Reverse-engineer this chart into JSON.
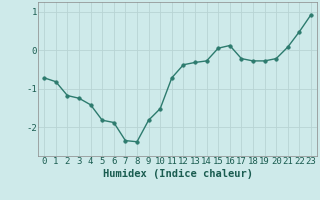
{
  "x": [
    0,
    1,
    2,
    3,
    4,
    5,
    6,
    7,
    8,
    9,
    10,
    11,
    12,
    13,
    14,
    15,
    16,
    17,
    18,
    19,
    20,
    21,
    22,
    23
  ],
  "y": [
    -0.72,
    -0.82,
    -1.18,
    -1.25,
    -1.42,
    -1.82,
    -1.88,
    -2.35,
    -2.38,
    -1.82,
    -1.52,
    -0.72,
    -0.38,
    -0.32,
    -0.28,
    0.05,
    0.12,
    -0.22,
    -0.28,
    -0.28,
    -0.22,
    0.08,
    0.48,
    0.92
  ],
  "line_color": "#2d7b6e",
  "marker_color": "#2d7b6e",
  "bg_color": "#ceeaea",
  "grid_color": "#b8d4d4",
  "xlabel": "Humidex (Indice chaleur)",
  "xlim": [
    -0.5,
    23.5
  ],
  "ylim": [
    -2.75,
    1.25
  ],
  "yticks": [
    -2,
    -1,
    0,
    1
  ],
  "xtick_labels": [
    "0",
    "1",
    "2",
    "3",
    "4",
    "5",
    "6",
    "7",
    "8",
    "9",
    "10",
    "11",
    "12",
    "13",
    "14",
    "15",
    "16",
    "17",
    "18",
    "19",
    "20",
    "21",
    "22",
    "23"
  ],
  "tick_fontsize": 6.5,
  "xlabel_fontsize": 7.5,
  "marker_size": 2.5,
  "line_width": 1.0
}
